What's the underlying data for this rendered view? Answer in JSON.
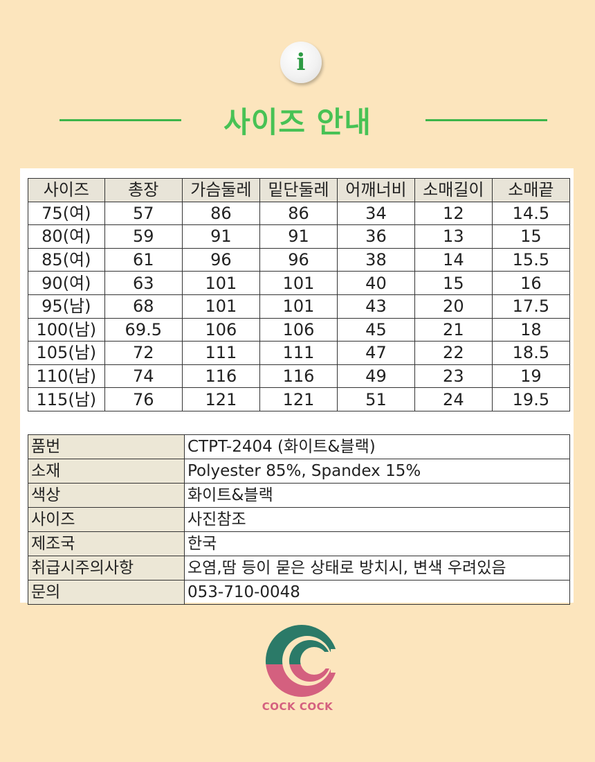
{
  "header": {
    "icon": "info-icon",
    "icon_glyph": "i",
    "title": "사이즈 안내",
    "accent_color": "#48c255"
  },
  "size_table": {
    "headers": [
      "사이즈",
      "총장",
      "가슴둘레",
      "밑단둘레",
      "어깨너비",
      "소매길이",
      "소매끝"
    ],
    "rows": [
      [
        "75(여)",
        "57",
        "86",
        "86",
        "34",
        "12",
        "14.5"
      ],
      [
        "80(여)",
        "59",
        "91",
        "91",
        "36",
        "13",
        "15"
      ],
      [
        "85(여)",
        "61",
        "96",
        "96",
        "38",
        "14",
        "15.5"
      ],
      [
        "90(여)",
        "63",
        "101",
        "101",
        "40",
        "15",
        "16"
      ],
      [
        "95(남)",
        "68",
        "101",
        "101",
        "43",
        "20",
        "17.5"
      ],
      [
        "100(남)",
        "69.5",
        "106",
        "106",
        "45",
        "21",
        "18"
      ],
      [
        "105(남)",
        "72",
        "111",
        "111",
        "47",
        "22",
        "18.5"
      ],
      [
        "110(남)",
        "74",
        "116",
        "116",
        "49",
        "23",
        "19"
      ],
      [
        "115(남)",
        "76",
        "121",
        "121",
        "51",
        "24",
        "19.5"
      ]
    ]
  },
  "info_table": {
    "rows": [
      {
        "label": "품번",
        "value": "CTPT-2404 (화이트&블랙)"
      },
      {
        "label": "소재",
        "value": "Polyester 85%, Spandex 15%"
      },
      {
        "label": "색상",
        "value": "화이트&블랙"
      },
      {
        "label": "사이즈",
        "value": "사진참조"
      },
      {
        "label": "제조국",
        "value": "한국"
      },
      {
        "label": "취급시주의사항",
        "value": "오염,땀 등이 묻은 상태로 방치시, 변색 우려있음"
      },
      {
        "label": "문의",
        "value": "053-710-0048"
      }
    ]
  },
  "brand": {
    "logo": "cc-logo-icon",
    "name": "COCK COCK",
    "colors": {
      "green": "#2b7a68",
      "pink": "#d4607f"
    }
  }
}
